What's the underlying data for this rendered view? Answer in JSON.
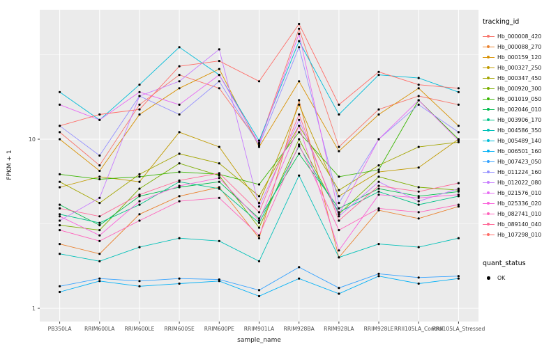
{
  "figure": {
    "y_axis_label": "FPKM + 1",
    "x_axis_label": "sample_name"
  },
  "legend": {
    "tracking_title": "tracking_id",
    "quant_title": "quant_status",
    "quant_items": [
      {
        "label": "OK",
        "color": "#000000"
      }
    ]
  },
  "chart_data": {
    "type": "line",
    "title": "",
    "xlabel": "sample_name",
    "ylabel": "FPKM + 1",
    "y_scale": "log10",
    "y_tick_values": [
      10,
      1
    ],
    "y_minor_values": [
      31.62,
      3.162
    ],
    "ylim": [
      0.84,
      58
    ],
    "grid": true,
    "legend_position": "right",
    "panel_background": "#EBEBEB",
    "gridline_color": "#FFFFFF",
    "point_color": "#000000",
    "quant_status": "OK",
    "categories": [
      "PB350LA",
      "RRIM600LA",
      "RRIM600LE",
      "RRIM600SE",
      "RRIM600PE",
      "RRIM901LA",
      "RRIM928BA",
      "RRIM928LA",
      "RRIM928LE",
      "RRII105LA_Control",
      "RRII105LA_Stressed"
    ],
    "series": [
      {
        "name": "Hb_000008_420",
        "color": "#F8766D",
        "values": [
          11,
          7,
          16,
          24,
          20,
          9.5,
          45,
          9,
          15,
          18,
          16
        ]
      },
      {
        "name": "Hb_000088_270",
        "color": "#EA8331",
        "values": [
          2.4,
          2.1,
          3.6,
          4.6,
          5.2,
          2.6,
          17,
          2.0,
          3.8,
          3.4,
          4.0
        ]
      },
      {
        "name": "Hb_000159_120",
        "color": "#D89000",
        "values": [
          10,
          6.5,
          14,
          20,
          26,
          9,
          22,
          8.5,
          14,
          20,
          12
        ]
      },
      {
        "name": "Hb_000327_250",
        "color": "#C09B00",
        "values": [
          5.2,
          6.0,
          5.6,
          11,
          9,
          4.2,
          16,
          4.6,
          6.4,
          6.8,
          10
        ]
      },
      {
        "name": "Hb_000347_450",
        "color": "#A3A500",
        "values": [
          5.6,
          4.2,
          6.2,
          8.2,
          7.2,
          4.6,
          12,
          5.0,
          7.0,
          9.0,
          9.6
        ]
      },
      {
        "name": "Hb_000920_300",
        "color": "#7CAE00",
        "values": [
          3.1,
          2.9,
          5.1,
          7.2,
          6.1,
          3.0,
          10,
          3.6,
          6.0,
          5.2,
          5.0
        ]
      },
      {
        "name": "Hb_001019_050",
        "color": "#39B600",
        "values": [
          6.2,
          5.8,
          6.0,
          6.4,
          6.2,
          5.4,
          11,
          6.0,
          6.6,
          17,
          10
        ]
      },
      {
        "name": "Hb_002046_010",
        "color": "#00BB4E",
        "values": [
          4.1,
          3.1,
          4.6,
          5.2,
          5.6,
          3.4,
          8.2,
          3.9,
          5.1,
          4.6,
          4.9
        ]
      },
      {
        "name": "Hb_003906_170",
        "color": "#00C087",
        "values": [
          3.6,
          3.2,
          4.1,
          5.6,
          5.1,
          3.2,
          9.1,
          3.7,
          4.9,
          4.1,
          4.6
        ]
      },
      {
        "name": "Hb_004586_350",
        "color": "#00C0B8",
        "values": [
          2.1,
          1.9,
          2.3,
          2.6,
          2.5,
          1.9,
          6.1,
          2.0,
          2.4,
          2.3,
          2.6
        ]
      },
      {
        "name": "Hb_005489_140",
        "color": "#00BCD8",
        "values": [
          19,
          13,
          21,
          35,
          24,
          9.8,
          38,
          14,
          24,
          23,
          19
        ]
      },
      {
        "name": "Hb_006501_160",
        "color": "#00B0F6",
        "values": [
          1.25,
          1.45,
          1.35,
          1.4,
          1.45,
          1.18,
          1.5,
          1.22,
          1.55,
          1.4,
          1.5
        ]
      },
      {
        "name": "Hb_007423_050",
        "color": "#35A2FF",
        "values": [
          1.35,
          1.5,
          1.45,
          1.5,
          1.48,
          1.28,
          1.75,
          1.32,
          1.6,
          1.52,
          1.55
        ]
      },
      {
        "name": "Hb_011224_160",
        "color": "#9590FF",
        "values": [
          12,
          8,
          18,
          14,
          22,
          9.2,
          35,
          4.2,
          10,
          16,
          11
        ]
      },
      {
        "name": "Hb_012022_080",
        "color": "#C77CFF",
        "values": [
          3.3,
          4.5,
          18,
          22,
          34,
          4.0,
          13,
          3.5,
          5.6,
          4.3,
          5.1
        ]
      },
      {
        "name": "Hb_021576_010",
        "color": "#E76BF3",
        "values": [
          16,
          13,
          19,
          16,
          24,
          9.4,
          42,
          3.6,
          10,
          17,
          9.8
        ]
      },
      {
        "name": "Hb_025336_020",
        "color": "#FA62DB",
        "values": [
          3.5,
          2.7,
          4.3,
          5.3,
          5.9,
          3.3,
          12,
          2.2,
          4.7,
          4.5,
          4.7
        ]
      },
      {
        "name": "Hb_082741_010",
        "color": "#FF62BC",
        "values": [
          2.9,
          2.5,
          3.3,
          4.3,
          4.5,
          2.7,
          9.3,
          2.9,
          3.9,
          3.7,
          4.1
        ]
      },
      {
        "name": "Hb_089140_040",
        "color": "#FF6A98",
        "values": [
          3.9,
          3.5,
          4.7,
          5.7,
          6.3,
          3.7,
          14,
          3.3,
          5.3,
          4.9,
          5.5
        ]
      },
      {
        "name": "Hb_107298_010",
        "color": "#FF6C67",
        "values": [
          12,
          14,
          15,
          27,
          29,
          22,
          48,
          16,
          25,
          21,
          20
        ]
      }
    ]
  }
}
